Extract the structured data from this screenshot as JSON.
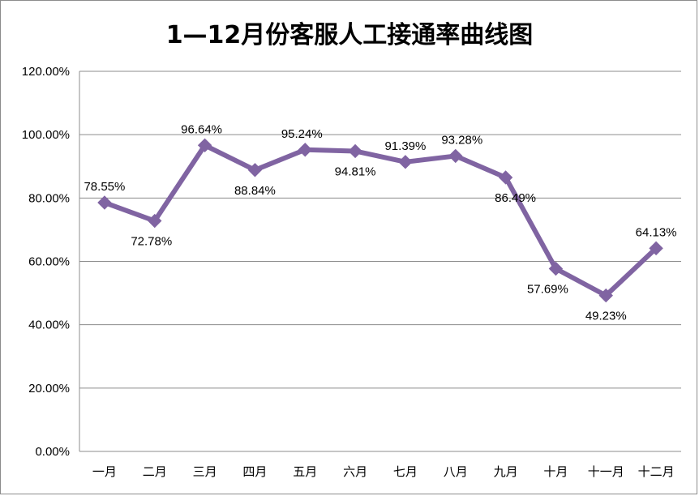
{
  "chart_data": {
    "type": "line",
    "title": "1—12月份客服人工接通率曲线图",
    "xlabel": "",
    "ylabel": "",
    "categories": [
      "一月",
      "二月",
      "三月",
      "四月",
      "五月",
      "六月",
      "七月",
      "八月",
      "九月",
      "十月",
      "十一月",
      "十二月"
    ],
    "series": [
      {
        "name": "人工接通率",
        "values": [
          78.55,
          72.78,
          96.64,
          88.84,
          95.24,
          94.81,
          91.39,
          93.28,
          86.49,
          57.69,
          49.23,
          64.13
        ],
        "labels": [
          "78.55%",
          "72.78%",
          "96.64%",
          "88.84%",
          "95.24%",
          "94.81%",
          "91.39%",
          "93.28%",
          "86.49%",
          "57.69%",
          "49.23%",
          "64.13%"
        ],
        "color": "#8064a2"
      }
    ],
    "ylim": [
      0,
      120
    ],
    "yticks": [
      0,
      20,
      40,
      60,
      80,
      100,
      120
    ],
    "ytick_labels": [
      "0.00%",
      "20.00%",
      "40.00%",
      "60.00%",
      "80.00%",
      "100.00%",
      "120.00%"
    ],
    "grid": true,
    "legend": "none"
  },
  "colors": {
    "line": "#8064a2",
    "grid": "#8c8c8c"
  }
}
